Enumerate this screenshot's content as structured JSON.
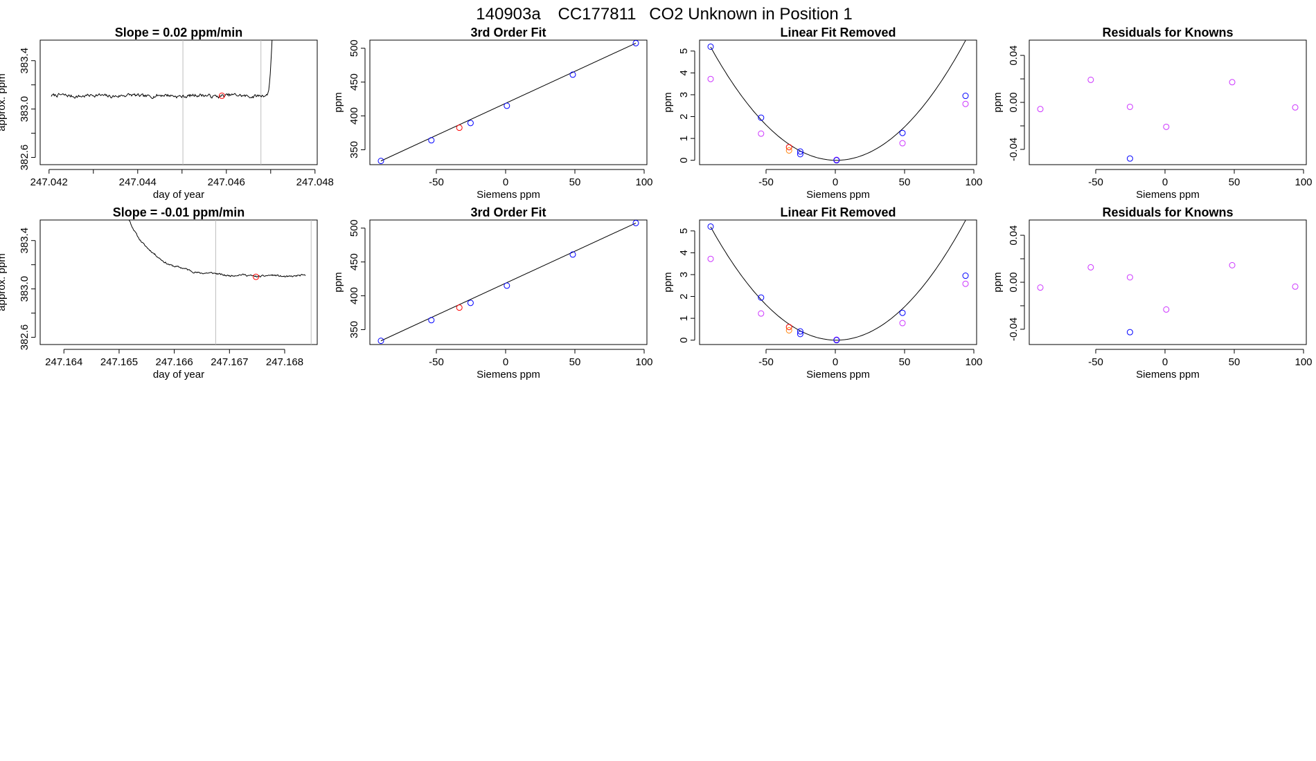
{
  "header": {
    "run_id": "140903a",
    "cylinder": "CC177811",
    "description": "CO2 Unknown in Position  1"
  },
  "colors": {
    "trace": "#000000",
    "known": "#0000ff",
    "unknown": "#ff0000",
    "residual": "#cc33ff",
    "unknown_residual": "#ff8000",
    "vline": "#bdbdbd"
  },
  "chart_data": [
    {
      "id": "r1c1",
      "type": "line",
      "title": "Slope =  0.02  ppm/min",
      "xlabel": "day of year",
      "ylabel": "approx. ppm",
      "xlim": [
        247.0418,
        247.04805
      ],
      "ylim": [
        382.54,
        383.57
      ],
      "xticks": [
        247.042,
        247.043,
        247.044,
        247.045,
        247.046,
        247.047,
        247.048
      ],
      "xtick_labels": [
        "247.042",
        "",
        "247.044",
        "",
        "247.046",
        "",
        "247.048"
      ],
      "yticks": [
        382.6,
        382.8,
        383.0,
        383.2,
        383.4
      ],
      "ytick_labels": [
        "382.6",
        "",
        "383.0",
        "",
        "383.4"
      ],
      "vlines": [
        247.04502,
        247.04678
      ],
      "trace": {
        "x_start": 247.04205,
        "x_end": 247.04704,
        "level": 383.11,
        "noise": 0.012,
        "tail": "up",
        "seed": 7
      },
      "marker": {
        "x": 247.0459,
        "y": 383.11
      }
    },
    {
      "id": "r1c2",
      "type": "scatter",
      "title": "3rd Order Fit",
      "xlabel": "Siemens ppm",
      "ylabel": "ppm",
      "xlim": [
        -98,
        102
      ],
      "ylim": [
        328,
        512
      ],
      "xticks": [
        -50,
        0,
        50,
        100
      ],
      "xtick_labels": [
        "-50",
        "0",
        "50",
        "100"
      ],
      "yticks": [
        350,
        400,
        450,
        500
      ],
      "ytick_labels": [
        "350",
        "400",
        "450",
        "500"
      ],
      "fit_line": [
        [
          -90,
          333.5
        ],
        [
          94,
          507.5
        ]
      ],
      "knowns": [
        [
          -90,
          333.5
        ],
        [
          -53.6,
          364
        ],
        [
          -25.3,
          389.5
        ],
        [
          0.9,
          415
        ],
        [
          48.5,
          461
        ],
        [
          94,
          507.5
        ]
      ],
      "unknowns": [
        [
          -33.4,
          382.5
        ]
      ]
    },
    {
      "id": "r1c3",
      "type": "scatter",
      "title": "Linear Fit Removed",
      "xlabel": "Siemens ppm",
      "ylabel": "ppm",
      "xlim": [
        -98,
        102
      ],
      "ylim": [
        -0.2,
        5.5
      ],
      "xticks": [
        -50,
        0,
        50,
        100
      ],
      "xtick_labels": [
        "-50",
        "0",
        "50",
        "100"
      ],
      "yticks": [
        0,
        1,
        2,
        3,
        4,
        5
      ],
      "ytick_labels": [
        "0",
        "1",
        "2",
        "3",
        "4",
        "5"
      ],
      "curve": {
        "a": 0.00063,
        "b": -0.0009,
        "c": 0.0,
        "x_range": [
          -90,
          94
        ]
      },
      "knowns": [
        [
          -90,
          5.2
        ],
        [
          -53.6,
          1.95
        ],
        [
          -25.3,
          0.4
        ],
        [
          -25.3,
          0.28
        ],
        [
          0.9,
          0.0
        ],
        [
          48.5,
          1.25
        ],
        [
          94,
          2.95
        ]
      ],
      "residuals": [
        [
          -90,
          3.72
        ],
        [
          -53.6,
          1.22
        ],
        [
          0.9,
          0.02
        ],
        [
          48.5,
          0.78
        ],
        [
          94,
          2.58
        ]
      ],
      "unknowns": [
        [
          -33.4,
          0.6
        ],
        [
          -33.4,
          0.45
        ]
      ]
    },
    {
      "id": "r1c4",
      "type": "scatter",
      "title": "Residuals for Knowns",
      "xlabel": "Siemens ppm",
      "ylabel": "ppm",
      "xlim": [
        -98,
        102
      ],
      "ylim": [
        -0.053,
        0.053
      ],
      "xticks": [
        -50,
        0,
        50,
        100
      ],
      "xtick_labels": [
        "-50",
        "0",
        "50",
        "100"
      ],
      "yticks": [
        -0.04,
        -0.02,
        0.0,
        0.02,
        0.04
      ],
      "ytick_labels": [
        "-0.04",
        "",
        "0.00",
        "",
        "0.04"
      ],
      "residuals": [
        [
          -90,
          -0.0057
        ],
        [
          -53.6,
          0.0192
        ],
        [
          -25.3,
          -0.0038
        ],
        [
          0.9,
          -0.0208
        ],
        [
          48.5,
          0.0172
        ],
        [
          94,
          -0.0043
        ]
      ],
      "knowns": [
        [
          -25.3,
          -0.0478
        ]
      ]
    },
    {
      "id": "r2c1",
      "type": "line",
      "title": "Slope =  -0.01  ppm/min",
      "xlabel": "day of year",
      "ylabel": "approx. ppm",
      "xlim": [
        247.16357,
        247.16859
      ],
      "ylim": [
        382.54,
        383.57
      ],
      "xticks": [
        247.164,
        247.165,
        247.166,
        247.167,
        247.168
      ],
      "xtick_labels": [
        "247.164",
        "247.165",
        "247.166",
        "247.167",
        "247.168"
      ],
      "yticks": [
        382.6,
        382.8,
        383.0,
        383.2,
        383.4
      ],
      "ytick_labels": [
        "382.6",
        "",
        "383.0",
        "",
        "383.4"
      ],
      "vlines": [
        247.16675,
        247.16848
      ],
      "trace": {
        "x_start": 247.16495,
        "x_end": 247.16838,
        "level": 383.105,
        "noise": 0.006,
        "tail": "decay",
        "seed": 11
      },
      "marker": {
        "x": 247.16748,
        "y": 383.1
      }
    },
    {
      "id": "r2c2",
      "type": "scatter",
      "title": "3rd Order Fit",
      "xlabel": "Siemens ppm",
      "ylabel": "ppm",
      "xlim": [
        -98,
        102
      ],
      "ylim": [
        328,
        512
      ],
      "xticks": [
        -50,
        0,
        50,
        100
      ],
      "xtick_labels": [
        "-50",
        "0",
        "50",
        "100"
      ],
      "yticks": [
        350,
        400,
        450,
        500
      ],
      "ytick_labels": [
        "350",
        "400",
        "450",
        "500"
      ],
      "fit_line": [
        [
          -90,
          333.5
        ],
        [
          94,
          507.5
        ]
      ],
      "knowns": [
        [
          -90,
          333.5
        ],
        [
          -53.6,
          364
        ],
        [
          -25.3,
          389.5
        ],
        [
          0.9,
          415
        ],
        [
          48.5,
          461
        ],
        [
          94,
          507.5
        ]
      ],
      "unknowns": [
        [
          -33.4,
          382.5
        ]
      ]
    },
    {
      "id": "r2c3",
      "type": "scatter",
      "title": "Linear Fit Removed",
      "xlabel": "Siemens ppm",
      "ylabel": "ppm",
      "xlim": [
        -98,
        102
      ],
      "ylim": [
        -0.2,
        5.5
      ],
      "xticks": [
        -50,
        0,
        50,
        100
      ],
      "xtick_labels": [
        "-50",
        "0",
        "50",
        "100"
      ],
      "yticks": [
        0,
        1,
        2,
        3,
        4,
        5
      ],
      "ytick_labels": [
        "0",
        "1",
        "2",
        "3",
        "4",
        "5"
      ],
      "curve": {
        "a": 0.00063,
        "b": -0.0009,
        "c": 0.0,
        "x_range": [
          -90,
          94
        ]
      },
      "knowns": [
        [
          -90,
          5.2
        ],
        [
          -53.6,
          1.95
        ],
        [
          -25.3,
          0.4
        ],
        [
          -25.3,
          0.28
        ],
        [
          0.9,
          0.0
        ],
        [
          48.5,
          1.25
        ],
        [
          94,
          2.95
        ]
      ],
      "residuals": [
        [
          -90,
          3.72
        ],
        [
          -53.6,
          1.22
        ],
        [
          0.9,
          0.02
        ],
        [
          48.5,
          0.78
        ],
        [
          94,
          2.58
        ]
      ],
      "unknowns": [
        [
          -33.4,
          0.6
        ],
        [
          -33.4,
          0.45
        ]
      ]
    },
    {
      "id": "r2c4",
      "type": "scatter",
      "title": "Residuals for Knowns",
      "xlabel": "Siemens ppm",
      "ylabel": "ppm",
      "xlim": [
        -98,
        102
      ],
      "ylim": [
        -0.053,
        0.053
      ],
      "xticks": [
        -50,
        0,
        50,
        100
      ],
      "xtick_labels": [
        "-50",
        "0",
        "50",
        "100"
      ],
      "yticks": [
        -0.04,
        -0.02,
        0.0,
        0.02,
        0.04
      ],
      "ytick_labels": [
        "-0.04",
        "",
        "0.00",
        "",
        "0.04"
      ],
      "residuals": [
        [
          -90,
          -0.0045
        ],
        [
          -53.6,
          0.0127
        ],
        [
          -25.3,
          0.0042
        ],
        [
          0.9,
          -0.0232
        ],
        [
          48.5,
          0.0145
        ],
        [
          94,
          -0.0037
        ]
      ],
      "knowns": [
        [
          -25.3,
          -0.0425
        ]
      ]
    }
  ]
}
